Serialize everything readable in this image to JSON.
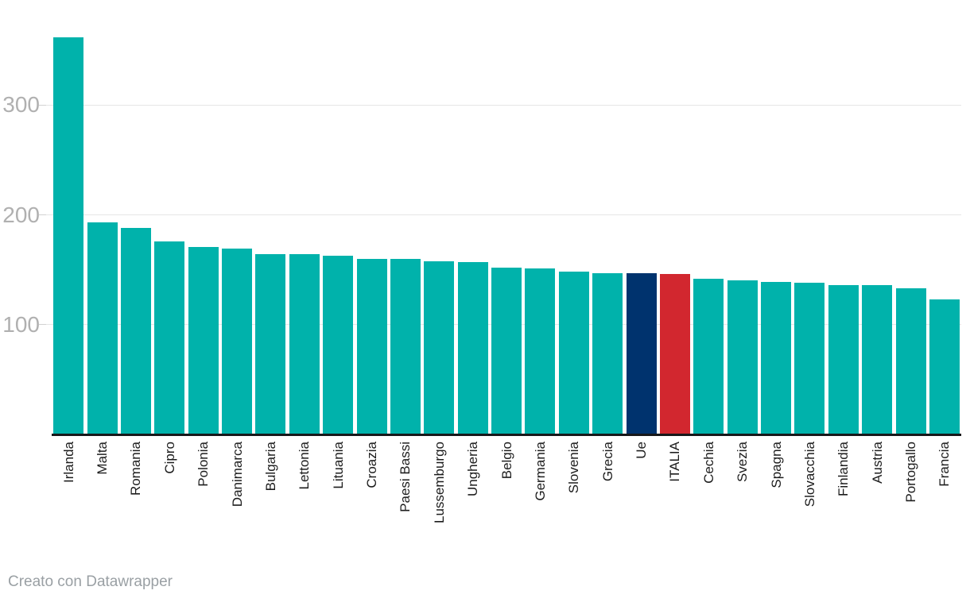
{
  "chart_data": {
    "type": "bar",
    "title": "",
    "xlabel": "",
    "ylabel": "",
    "categories": [
      "Irlanda",
      "Malta",
      "Romania",
      "Cipro",
      "Polonia",
      "Danimarca",
      "Bulgaria",
      "Lettonia",
      "Lituania",
      "Croazia",
      "Paesi Bassi",
      "Lussemburgo",
      "Ungheria",
      "Belgio",
      "Germania",
      "Slovenia",
      "Grecia",
      "Ue",
      "ITALIA",
      "Cechia",
      "Svezia",
      "Spagna",
      "Slovacchia",
      "Finlandia",
      "Austria",
      "Portogallo",
      "Francia"
    ],
    "values": [
      362,
      193,
      188,
      176,
      171,
      169,
      164,
      164,
      163,
      160,
      160,
      158,
      157,
      152,
      151,
      148,
      147,
      147,
      146,
      142,
      140,
      139,
      138,
      136,
      136,
      133,
      123
    ],
    "default_color": "#00b2ab",
    "bar_colors": {
      "Ue": "#00336e",
      "ITALIA": "#d2272f"
    },
    "yticks": [
      100,
      200,
      300
    ],
    "ylim": [
      0,
      395
    ],
    "grid": true,
    "legend": "none"
  },
  "colors": {
    "gridline": "#e6e6e6",
    "axis": "#17181a",
    "ytick_label": "#b0b0b0",
    "xtick_label": "#1c1c1c",
    "footer_text": "#9aa0a4"
  },
  "footer": {
    "credit": "Creato con Datawrapper"
  }
}
